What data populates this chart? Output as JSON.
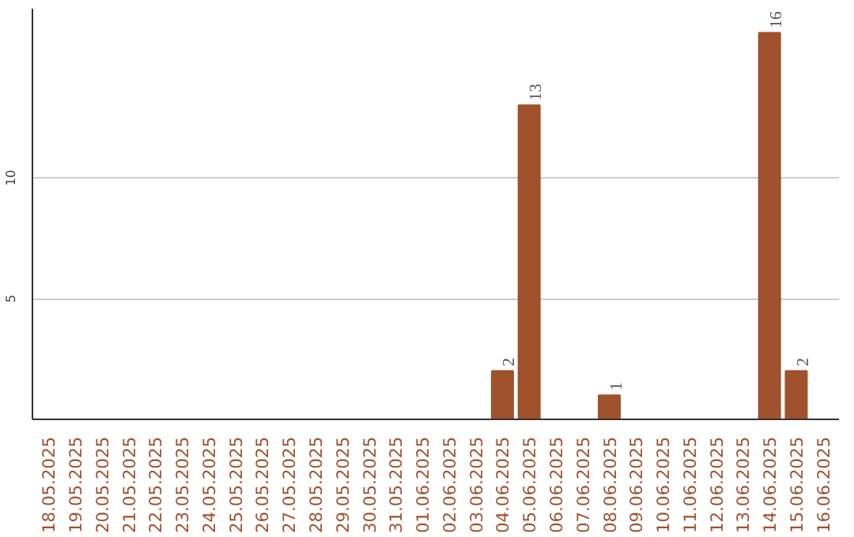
{
  "chart_data": {
    "type": "bar",
    "categories": [
      "18.05.2025",
      "19.05.2025",
      "20.05.2025",
      "21.05.2025",
      "22.05.2025",
      "23.05.2025",
      "24.05.2025",
      "25.05.2025",
      "26.05.2025",
      "27.05.2025",
      "28.05.2025",
      "29.05.2025",
      "30.05.2025",
      "31.05.2025",
      "01.06.2025",
      "02.06.2025",
      "03.06.2025",
      "04.06.2025",
      "05.06.2025",
      "06.06.2025",
      "07.06.2025",
      "08.06.2025",
      "09.06.2025",
      "10.06.2025",
      "11.06.2025",
      "12.06.2025",
      "13.06.2025",
      "14.06.2025",
      "15.06.2025",
      "16.06.2025"
    ],
    "values": [
      0,
      0,
      0,
      0,
      0,
      0,
      0,
      0,
      0,
      0,
      0,
      0,
      0,
      0,
      0,
      0,
      0,
      2,
      13,
      0,
      0,
      1,
      0,
      0,
      0,
      0,
      0,
      16,
      2,
      0
    ],
    "value_labels": [
      null,
      null,
      null,
      null,
      null,
      null,
      null,
      null,
      null,
      null,
      null,
      null,
      null,
      null,
      null,
      null,
      null,
      "2",
      "13",
      null,
      null,
      "1",
      null,
      null,
      null,
      null,
      null,
      "16",
      "2",
      null
    ],
    "color": "#a0522d",
    "ylim": [
      0,
      17
    ],
    "yticks": [
      5,
      10
    ],
    "grid": "y"
  }
}
